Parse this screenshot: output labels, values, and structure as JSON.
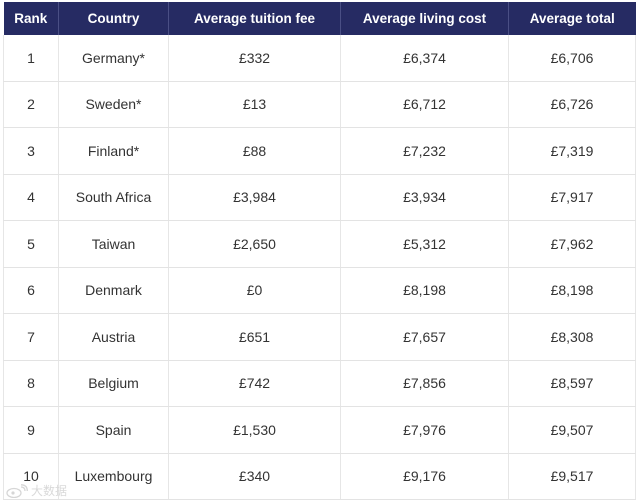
{
  "table": {
    "headers": [
      "Rank",
      "Country",
      "Average tuition fee",
      "Average living cost",
      "Average total"
    ],
    "rows": [
      [
        "1",
        "Germany*",
        "£332",
        "£6,374",
        "£6,706"
      ],
      [
        "2",
        "Sweden*",
        "£13",
        "£6,712",
        "£6,726"
      ],
      [
        "3",
        "Finland*",
        "£88",
        "£7,232",
        "£7,319"
      ],
      [
        "4",
        "South Africa",
        "£3,984",
        "£3,934",
        "£7,917"
      ],
      [
        "5",
        "Taiwan",
        "£2,650",
        "£5,312",
        "£7,962"
      ],
      [
        "6",
        "Denmark",
        "£0",
        "£8,198",
        "£8,198"
      ],
      [
        "7",
        "Austria",
        "£651",
        "£7,657",
        "£8,308"
      ],
      [
        "8",
        "Belgium",
        "£742",
        "£7,856",
        "£8,597"
      ],
      [
        "9",
        "Spain",
        "£1,530",
        "£7,976",
        "£9,507"
      ],
      [
        "10",
        "Luxembourg",
        "£340",
        "£9,176",
        "£9,517"
      ]
    ]
  },
  "watermark": {
    "text": "大数据",
    "icon": "weibo-logo-icon"
  }
}
